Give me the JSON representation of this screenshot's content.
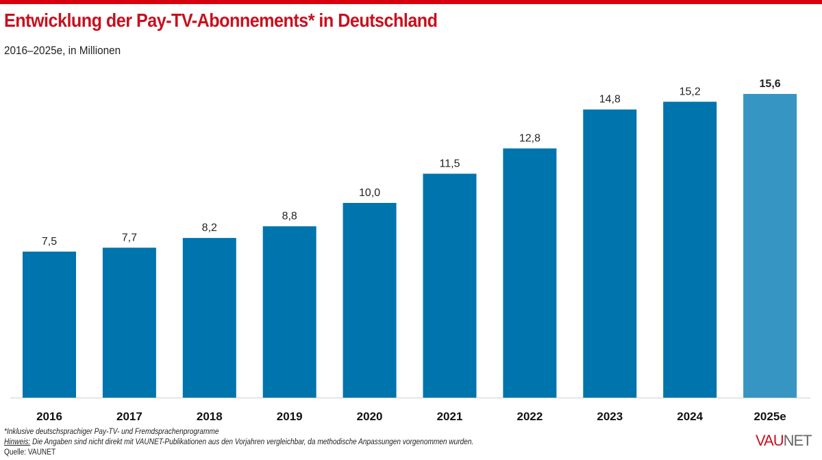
{
  "header": {
    "title": "Entwicklung der Pay-TV-Abonnements* in Deutschland",
    "subtitle": "2016–2025e, in Millionen"
  },
  "footer": {
    "footnote": "*Inklusive deutschsprachiger Pay-TV- und Fremdsprachenprogramme",
    "hint_label": "Hinweis:",
    "hint_text": " Die Angaben sind nicht direkt mit VAUNET-Publikationen aus den Vorjahren vergleichbar, da methodische Anpassungen vorgenommen wurden.",
    "source": "Quelle: VAUNET"
  },
  "logo": {
    "part1": "VAU",
    "part2": "NET"
  },
  "colors": {
    "bar": "#0074ac",
    "bar_estimate": "#3795c3",
    "accent": "#c8101e",
    "topbar": "#d9000d"
  },
  "chart_data": {
    "type": "bar",
    "title": "Entwicklung der Pay-TV-Abonnements* in Deutschland",
    "subtitle": "2016–2025e, in Millionen",
    "xlabel": "",
    "ylabel": "Millionen",
    "categories": [
      "2016",
      "2017",
      "2018",
      "2019",
      "2020",
      "2021",
      "2022",
      "2023",
      "2024",
      "2025e"
    ],
    "values": [
      7.5,
      7.7,
      8.2,
      8.8,
      10.0,
      11.5,
      12.8,
      14.8,
      15.2,
      15.6
    ],
    "value_labels": [
      "7,5",
      "7,7",
      "8,2",
      "8,8",
      "10,0",
      "11,5",
      "12,8",
      "14,8",
      "15,2",
      "15,6"
    ],
    "estimate": [
      false,
      false,
      false,
      false,
      false,
      false,
      false,
      false,
      false,
      true
    ],
    "ylim": [
      0,
      15.6
    ],
    "grid": false,
    "legend": "none"
  }
}
